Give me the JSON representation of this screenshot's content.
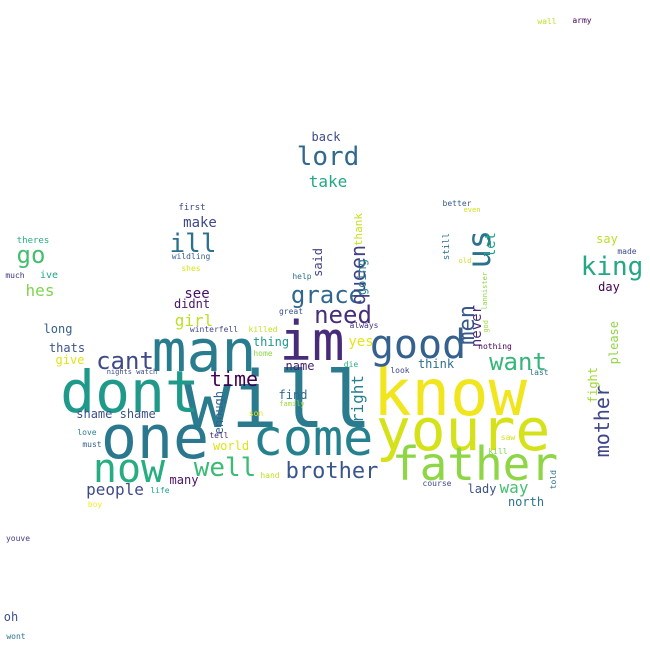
{
  "words": [
    {
      "text": "will",
      "color": "#2a7b8e"
    },
    {
      "text": "know",
      "color": "#f1e51d"
    },
    {
      "text": "youre",
      "color": "#d5e21a"
    },
    {
      "text": "dont",
      "color": "#1f9a8a"
    },
    {
      "text": "one",
      "color": "#2a788e"
    },
    {
      "text": "man",
      "color": "#287c8e"
    },
    {
      "text": "come",
      "color": "#26818e"
    },
    {
      "text": "im",
      "color": "#472c7a"
    },
    {
      "text": "father",
      "color": "#8ed645"
    },
    {
      "text": "good",
      "color": "#34618d"
    },
    {
      "text": "now",
      "color": "#27ad81"
    },
    {
      "text": "us",
      "color": "#2c728e"
    },
    {
      "text": "lord",
      "color": "#31688e"
    },
    {
      "text": "king",
      "color": "#22a884"
    },
    {
      "text": "well",
      "color": "#3bbb75"
    },
    {
      "text": "grace",
      "color": "#31678e"
    },
    {
      "text": "want",
      "color": "#35b779"
    },
    {
      "text": "brother",
      "color": "#39558c"
    },
    {
      "text": "cant",
      "color": "#3e4a89"
    },
    {
      "text": "need",
      "color": "#472d7b"
    },
    {
      "text": "go",
      "color": "#44bf70"
    },
    {
      "text": "time",
      "color": "#440154"
    },
    {
      "text": "men",
      "color": "#38598c"
    },
    {
      "text": "ill",
      "color": "#2d708e"
    },
    {
      "text": "mother",
      "color": "#3f4788"
    },
    {
      "text": "queen",
      "color": "#424086"
    },
    {
      "text": "take",
      "color": "#22a785"
    },
    {
      "text": "people",
      "color": "#3f4889"
    },
    {
      "text": "right",
      "color": "#27808e"
    },
    {
      "text": "make",
      "color": "#3e4989"
    },
    {
      "text": "see",
      "color": "#471063"
    },
    {
      "text": "girl",
      "color": "#bddf26"
    },
    {
      "text": "hes",
      "color": "#7fd34e"
    },
    {
      "text": "yes",
      "color": "#e7e419"
    },
    {
      "text": "let",
      "color": "#1fa187"
    },
    {
      "text": "never",
      "color": "#482878"
    },
    {
      "text": "back",
      "color": "#3d4d8a"
    },
    {
      "text": "lady",
      "color": "#3b528b"
    },
    {
      "text": "way",
      "color": "#44bf70"
    },
    {
      "text": "north",
      "color": "#2d718e"
    },
    {
      "text": "think",
      "color": "#2e6f8e"
    },
    {
      "text": "day",
      "color": "#440154"
    },
    {
      "text": "please",
      "color": "#90d743"
    },
    {
      "text": "fight",
      "color": "#a2da37"
    },
    {
      "text": "say",
      "color": "#bade28"
    },
    {
      "text": "long",
      "color": "#355f8d"
    },
    {
      "text": "thats",
      "color": "#3b528b"
    },
    {
      "text": "give",
      "color": "#e2e418"
    },
    {
      "text": "didnt",
      "color": "#481668"
    },
    {
      "text": "thing",
      "color": "#1f988b"
    },
    {
      "text": "name",
      "color": "#482173"
    },
    {
      "text": "find",
      "color": "#2f6c8e"
    },
    {
      "text": "enough",
      "color": "#33638d"
    },
    {
      "text": "said",
      "color": "#414487"
    },
    {
      "text": "going",
      "color": "#26828e"
    },
    {
      "text": "thank",
      "color": "#c8e020"
    },
    {
      "text": "many",
      "color": "#471365"
    },
    {
      "text": "world",
      "color": "#dde318"
    },
    {
      "text": "shame shame",
      "color": "#3b528b"
    },
    {
      "text": "first",
      "color": "#3e4989"
    },
    {
      "text": "wildling",
      "color": "#365c8d"
    },
    {
      "text": "shes",
      "color": "#d8e219"
    },
    {
      "text": "theres",
      "color": "#26ad81"
    },
    {
      "text": "ive",
      "color": "#20a486"
    },
    {
      "text": "much",
      "color": "#46327e"
    },
    {
      "text": "better",
      "color": "#375a8c"
    },
    {
      "text": "even",
      "color": "#d0e11c"
    },
    {
      "text": "still",
      "color": "#2c738e"
    },
    {
      "text": "old",
      "color": "#cde11d"
    },
    {
      "text": "lannister",
      "color": "#8bd646"
    },
    {
      "text": "god",
      "color": "#9bd93c"
    },
    {
      "text": "made",
      "color": "#3e4a89"
    },
    {
      "text": "help",
      "color": "#2c728e"
    },
    {
      "text": "great",
      "color": "#3b528b"
    },
    {
      "text": "always",
      "color": "#453581"
    },
    {
      "text": "winterfell",
      "color": "#3f4889"
    },
    {
      "text": "killed",
      "color": "#c2df23"
    },
    {
      "text": "home",
      "color": "#8ed645"
    },
    {
      "text": "die",
      "color": "#29af7f"
    },
    {
      "text": "look",
      "color": "#404588"
    },
    {
      "text": "nothing",
      "color": "#440154"
    },
    {
      "text": "last",
      "color": "#2d708e"
    },
    {
      "text": "nights watch",
      "color": "#3e4989"
    },
    {
      "text": "family",
      "color": "#9bd93c"
    },
    {
      "text": "son",
      "color": "#e5e419"
    },
    {
      "text": "tell",
      "color": "#481f70"
    },
    {
      "text": "love",
      "color": "#26818e"
    },
    {
      "text": "must",
      "color": "#355e8d"
    },
    {
      "text": "hand",
      "color": "#c0df25"
    },
    {
      "text": "life",
      "color": "#20a486"
    },
    {
      "text": "boy",
      "color": "#fde725"
    },
    {
      "text": "course",
      "color": "#3e4989"
    },
    {
      "text": "saw",
      "color": "#d2e21b"
    },
    {
      "text": "kill",
      "color": "#7fd34e"
    },
    {
      "text": "told",
      "color": "#2c728e"
    },
    {
      "text": "wall",
      "color": "#bddf26"
    },
    {
      "text": "army",
      "color": "#440154"
    },
    {
      "text": "youve",
      "color": "#424086"
    },
    {
      "text": "oh",
      "color": "#3b528b"
    },
    {
      "text": "wont",
      "color": "#2c728e"
    }
  ]
}
